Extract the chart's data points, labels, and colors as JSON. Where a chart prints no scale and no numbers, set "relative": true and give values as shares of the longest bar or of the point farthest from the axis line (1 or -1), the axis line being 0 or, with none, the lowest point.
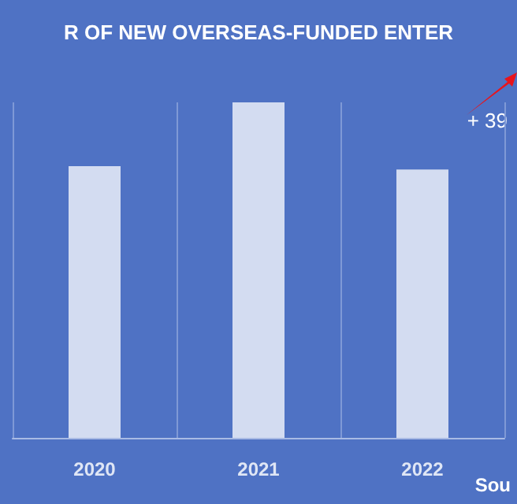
{
  "chart_data": {
    "type": "bar",
    "title": "R OF NEW OVERSEAS-FUNDED ENTER",
    "categories": [
      "2020",
      "2021",
      "2022"
    ],
    "values": [
      0.81,
      1,
      0.8
    ],
    "color": "#d3dcf1",
    "relative": true,
    "grid": "x",
    "annotations": [
      "+ 39",
      "Sou"
    ]
  }
}
